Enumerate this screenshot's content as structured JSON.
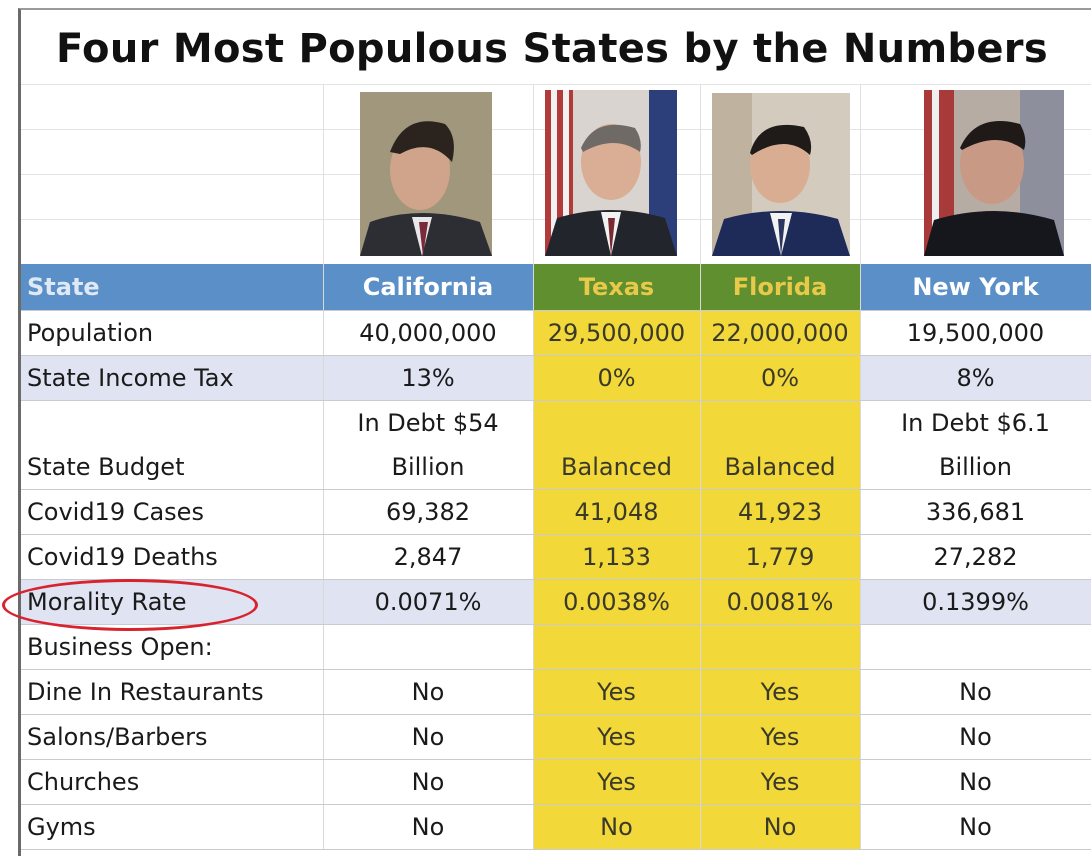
{
  "title": "Four Most Populous States by the Numbers",
  "portraits": [
    {
      "state": "California",
      "icon": "governor-portrait-icon"
    },
    {
      "state": "Texas",
      "icon": "governor-portrait-icon"
    },
    {
      "state": "Florida",
      "icon": "governor-portrait-icon"
    },
    {
      "state": "New York",
      "icon": "governor-portrait-icon"
    }
  ],
  "colors": {
    "header_blue": "#5b8fc7",
    "header_green": "#5f8f2e",
    "highlight_yellow": "#f3d83a",
    "row_shade": "#dfe3f2",
    "oval_red": "#d8232f"
  },
  "table": {
    "header": [
      "State",
      "California",
      "Texas",
      "Florida",
      "New York"
    ],
    "rows": {
      "population": [
        "Population",
        "40,000,000",
        "29,500,000",
        "22,000,000",
        "19,500,000"
      ],
      "income_tax": [
        "State Income Tax",
        "13%",
        "0%",
        "0%",
        "8%"
      ],
      "budget_line1": [
        "",
        "In Debt $54",
        "",
        "",
        "In Debt $6.1"
      ],
      "budget_line2": [
        "State Budget",
        "Billion",
        "Balanced",
        "Balanced",
        "Billion"
      ],
      "cases": [
        "Covid19 Cases",
        "69,382",
        "41,048",
        "41,923",
        "336,681"
      ],
      "deaths": [
        "Covid19 Deaths",
        "2,847",
        "1,133",
        "1,779",
        "27,282"
      ],
      "mortality": [
        "Morality Rate",
        "0.0071%",
        "0.0038%",
        "0.0081%",
        "0.1399%"
      ],
      "business": [
        "Business Open:",
        "",
        "",
        "",
        ""
      ],
      "dine_in": [
        "Dine In Restaurants",
        "No",
        "Yes",
        "Yes",
        "No"
      ],
      "salons": [
        "Salons/Barbers",
        "No",
        "Yes",
        "Yes",
        "No"
      ],
      "churches": [
        "Churches",
        "No",
        "Yes",
        "Yes",
        "No"
      ],
      "gyms": [
        "Gyms",
        "No",
        "No",
        "No",
        "No"
      ]
    }
  }
}
